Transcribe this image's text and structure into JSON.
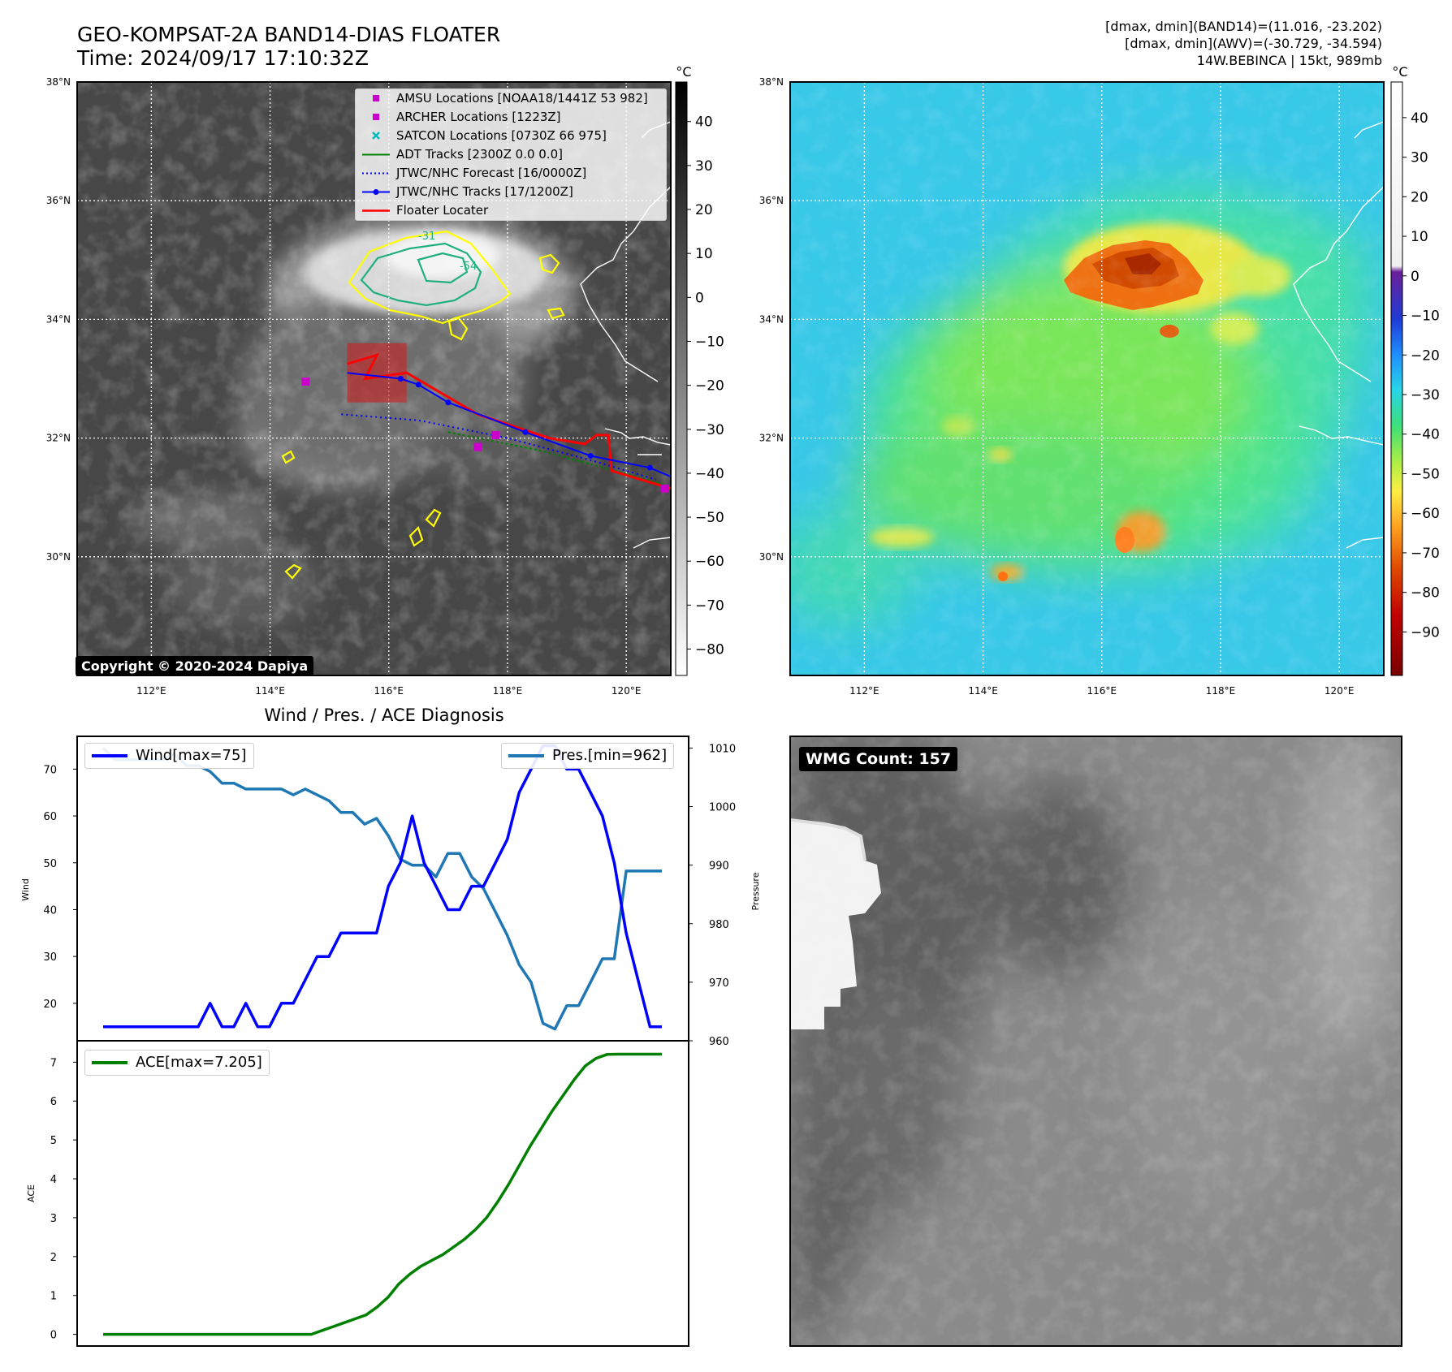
{
  "title": {
    "line1": "GEO-KOMPSAT-2A BAND14-DIAS FLOATER",
    "line2": "Time: 2024/09/17 17:10:32Z"
  },
  "header_right": {
    "line1": "[dmax, dmin](BAND14)=(11.016, -23.202)",
    "line2": "[dmax, dmin](AWV)=(-30.729, -34.594)",
    "line3": "14W.BEBINCA | 15kt, 989mb"
  },
  "copyright": "Copyright © 2020-2024 Dapiya",
  "wmg_count": "WMG Count: 157",
  "diag_title": "Wind / Pres. / ACE Diagnosis",
  "colors": {
    "wind": "#0000ff",
    "pressure": "#1f77b4",
    "ace": "#008000",
    "floater": "#ff0000",
    "adt": "#008000",
    "marker_magenta": "#cc00cc",
    "satcon": "#00bbbb",
    "contour_yellow": "#ffff00",
    "contour_teal": "#20b080"
  },
  "map": {
    "lat_labels": [
      "38°N",
      "36°N",
      "34°N",
      "32°N",
      "30°N"
    ],
    "lon_labels": [
      "112°E",
      "114°E",
      "116°E",
      "118°E",
      "120°E"
    ],
    "colorbar_unit": "°C",
    "gray_ticks": [
      "40",
      "30",
      "20",
      "10",
      "0",
      "−10",
      "−20",
      "−30",
      "−40",
      "−50",
      "−60",
      "−70",
      "−80"
    ],
    "color_ticks": [
      "40",
      "30",
      "20",
      "10",
      "0",
      "−10",
      "−20",
      "−30",
      "−40",
      "−50",
      "−60",
      "−70",
      "−80",
      "−90"
    ],
    "contour_labels": [
      "-31",
      "-54"
    ],
    "legend": [
      {
        "icon": "magenta-square",
        "label": "AMSU Locations [NOAA18/1441Z 53 982]"
      },
      {
        "icon": "magenta-square",
        "label": "ARCHER Locations [1223Z]"
      },
      {
        "icon": "cyan-x",
        "label": "SATCON Locations [0730Z 66 975]"
      },
      {
        "icon": "green-line",
        "label": "ADT Tracks [2300Z 0.0 0.0]"
      },
      {
        "icon": "blue-dotted",
        "label": "JTWC/NHC Forecast [16/0000Z]"
      },
      {
        "icon": "blue-marker-line",
        "label": "JTWC/NHC Tracks [17/1200Z]"
      },
      {
        "icon": "red-line",
        "label": "Floater Locater"
      }
    ],
    "tracks": {
      "jtwc_track": [
        [
          115.3,
          33.1
        ],
        [
          116.2,
          33.0
        ],
        [
          116.5,
          32.9
        ],
        [
          117.0,
          32.6
        ],
        [
          118.3,
          32.1
        ],
        [
          119.4,
          31.7
        ],
        [
          120.4,
          31.5
        ],
        [
          120.75,
          31.35
        ]
      ],
      "jtwc_forecast": [
        [
          115.2,
          32.4
        ],
        [
          116.5,
          32.3
        ],
        [
          118.0,
          32.0
        ],
        [
          119.5,
          31.6
        ],
        [
          120.5,
          31.3
        ]
      ],
      "adt_track": [
        [
          117.0,
          32.1
        ],
        [
          118.5,
          31.8
        ],
        [
          120.0,
          31.4
        ],
        [
          120.7,
          31.2
        ]
      ],
      "floater_track": [
        [
          115.3,
          33.25
        ],
        [
          115.8,
          33.4
        ],
        [
          115.6,
          33.0
        ],
        [
          116.3,
          33.1
        ],
        [
          117.5,
          32.4
        ],
        [
          118.7,
          32.0
        ],
        [
          119.3,
          31.9
        ],
        [
          119.5,
          32.05
        ],
        [
          119.7,
          32.05
        ],
        [
          119.75,
          31.45
        ],
        [
          120.75,
          31.15
        ]
      ],
      "amsu": [
        [
          114.6,
          32.95
        ],
        [
          117.5,
          31.85
        ],
        [
          120.65,
          31.15
        ]
      ],
      "archer": [
        [
          117.8,
          32.05
        ]
      ],
      "floater_box": {
        "lon_min": 115.3,
        "lon_max": 116.3,
        "lat_min": 32.6,
        "lat_max": 33.6
      }
    }
  },
  "chart_data": [
    {
      "type": "line",
      "title": "Wind / Pres. / ACE Diagnosis",
      "xlabel": "",
      "ylabel": "Wind",
      "ylabel_right": "Pressure",
      "ylim": [
        12,
        77
      ],
      "ylim_right": [
        960,
        1012
      ],
      "yticks": [
        20,
        30,
        40,
        50,
        60,
        70
      ],
      "yticks_right": [
        960,
        970,
        980,
        990,
        1000,
        1010
      ],
      "series": [
        {
          "name": "Wind[max=75]",
          "axis": "left",
          "values": [
            15,
            15,
            15,
            15,
            15,
            15,
            15,
            15,
            15,
            20,
            15,
            15,
            20,
            15,
            15,
            20,
            20,
            25,
            30,
            30,
            35,
            35,
            35,
            35,
            45,
            50,
            60,
            50,
            45,
            40,
            40,
            45,
            45,
            50,
            55,
            65,
            70,
            75,
            75,
            70,
            70,
            65,
            60,
            50,
            35,
            25,
            15,
            15
          ]
        },
        {
          "name": "Pres.[min=962]",
          "axis": "right",
          "values": [
            1010,
            1008,
            1008,
            1008,
            1008,
            1008,
            1009,
            1007,
            1007,
            1006,
            1004,
            1004,
            1003,
            1003,
            1003,
            1003,
            1002,
            1003,
            1002,
            1001,
            999,
            999,
            997,
            998,
            995,
            991,
            990,
            990,
            988,
            992,
            992,
            988,
            986,
            982,
            978,
            973,
            970,
            963,
            962,
            966,
            966,
            970,
            974,
            974,
            989,
            989,
            989,
            989
          ]
        }
      ]
    },
    {
      "type": "line",
      "xlabel": "",
      "ylabel": "ACE",
      "ylim": [
        -0.3,
        7.55
      ],
      "yticks": [
        0,
        1,
        2,
        3,
        4,
        5,
        6,
        7
      ],
      "series": [
        {
          "name": "ACE[max=7.205]",
          "values": [
            0,
            0,
            0,
            0,
            0,
            0,
            0,
            0,
            0,
            0,
            0,
            0,
            0,
            0,
            0,
            0,
            0,
            0,
            0,
            0,
            0.1,
            0.2,
            0.3,
            0.4,
            0.5,
            0.7,
            0.95,
            1.3,
            1.55,
            1.75,
            1.9,
            2.05,
            2.25,
            2.45,
            2.7,
            3.0,
            3.4,
            3.85,
            4.35,
            4.85,
            5.3,
            5.75,
            6.15,
            6.55,
            6.9,
            7.1,
            7.2,
            7.205,
            7.205,
            7.205,
            7.205,
            7.205
          ]
        }
      ]
    }
  ]
}
